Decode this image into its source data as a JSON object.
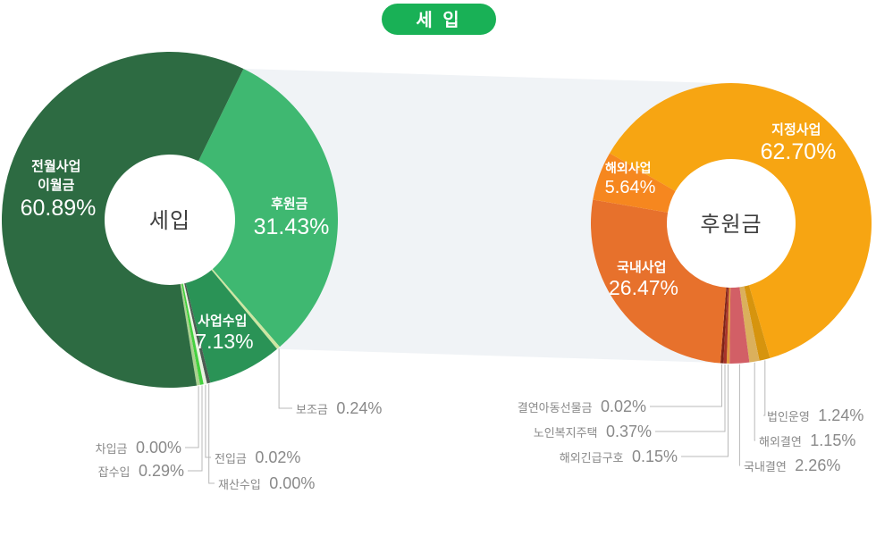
{
  "title": {
    "text": "세 입"
  },
  "colors": {
    "background": "#ffffff",
    "title_bg": "#19b156",
    "band": "#f0f3f6",
    "leader_line": "#b8b8b8",
    "outside_label": "#898989",
    "center_label": "#3e3e3e",
    "inside_label": "#ffffff"
  },
  "chart_data": [
    {
      "type": "pie",
      "subtype": "donut",
      "name": "세입 구성",
      "center_label": "세입",
      "legend_position": "none",
      "slices": [
        {
          "label": "후원금",
          "pct": 31.43,
          "pct_text": "31.43%",
          "color": "#3fb871",
          "label_position": "inside"
        },
        {
          "label": "보조금",
          "pct": 0.24,
          "pct_text": "0.24%",
          "color": "#cde6a2",
          "label_position": "outside"
        },
        {
          "label": "사업수입",
          "pct": 7.13,
          "pct_text": "7.13%",
          "color": "#2a9356",
          "label_position": "inside"
        },
        {
          "label": "재산수입",
          "pct": 0.0,
          "pct_text": "0.00%",
          "color": "#4d5c53",
          "label_position": "outside"
        },
        {
          "label": "전입금",
          "pct": 0.02,
          "pct_text": "0.02%",
          "color": "#e9f2e0",
          "label_position": "outside"
        },
        {
          "label": "잡수입",
          "pct": 0.29,
          "pct_text": "0.29%",
          "color": "#44d13e",
          "label_position": "outside"
        },
        {
          "label": "차입금",
          "pct": 0.0,
          "pct_text": "0.00%",
          "color": "#a9d18f",
          "label_position": "outside"
        },
        {
          "label": "전월사업 이월금",
          "label_lines": [
            "전월사업",
            "이월금"
          ],
          "pct": 60.89,
          "pct_text": "60.89%",
          "color": "#2d6b42",
          "label_position": "inside"
        }
      ]
    },
    {
      "type": "pie",
      "subtype": "donut",
      "name": "후원금 구성",
      "center_label": "후원금",
      "legend_position": "none",
      "slices": [
        {
          "label": "지정사업",
          "pct": 62.7,
          "pct_text": "62.70%",
          "color": "#f7a512",
          "label_position": "inside"
        },
        {
          "label": "법인운영",
          "pct": 1.24,
          "pct_text": "1.24%",
          "color": "#d6940e",
          "label_position": "outside"
        },
        {
          "label": "해외결연",
          "pct": 1.15,
          "pct_text": "1.15%",
          "color": "#dbb05c",
          "label_position": "outside"
        },
        {
          "label": "국내결연",
          "pct": 2.26,
          "pct_text": "2.26%",
          "color": "#d25f66",
          "label_position": "outside"
        },
        {
          "label": "해외긴급구호",
          "pct": 0.15,
          "pct_text": "0.15%",
          "color": "#e09a3c",
          "label_position": "outside"
        },
        {
          "label": "노인복지주택",
          "pct": 0.37,
          "pct_text": "0.37%",
          "color": "#a8332a",
          "label_position": "outside"
        },
        {
          "label": "결연아동선물금",
          "pct": 0.02,
          "pct_text": "0.02%",
          "color": "#7e2418",
          "label_position": "outside"
        },
        {
          "label": "국내사업",
          "pct": 26.47,
          "pct_text": "26.47%",
          "color": "#e7712c",
          "label_position": "inside"
        },
        {
          "label": "해외사업",
          "pct": 5.64,
          "pct_text": "5.64%",
          "color": "#f6871f",
          "label_position": "inside"
        }
      ]
    }
  ]
}
